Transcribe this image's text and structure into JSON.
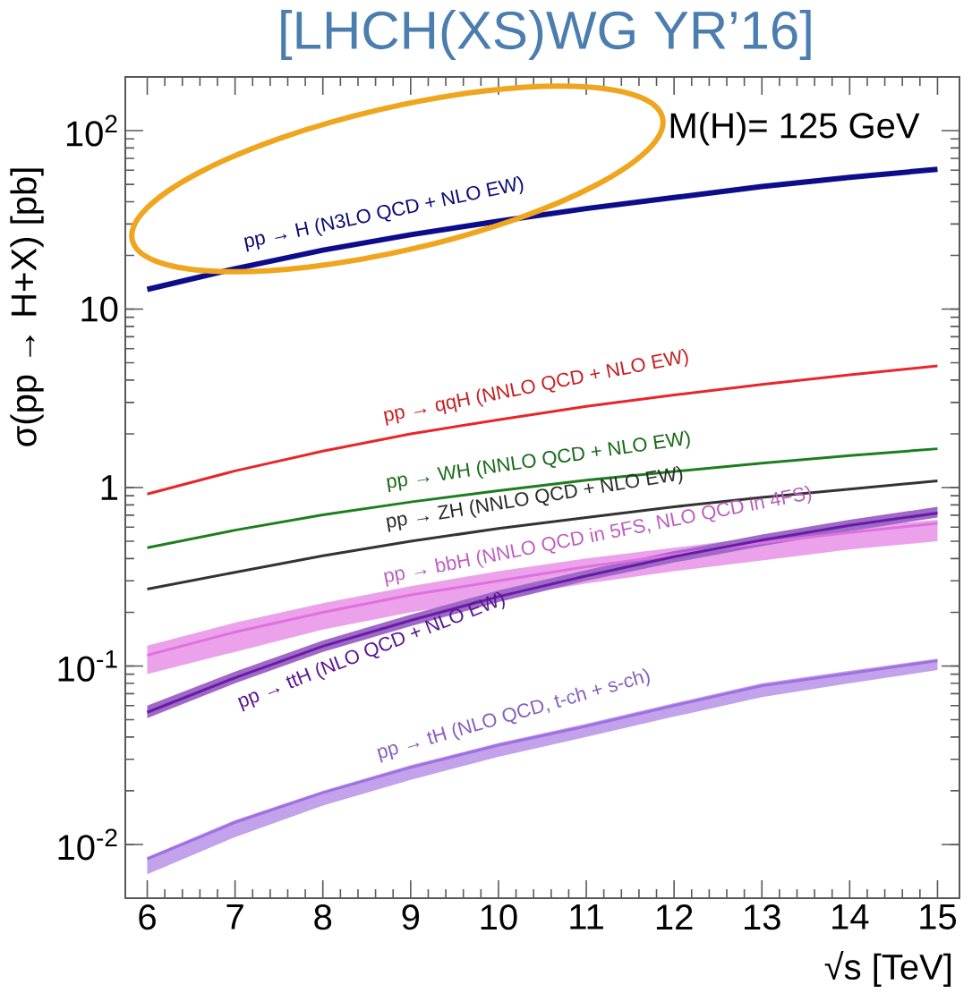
{
  "chart_data": {
    "type": "line",
    "title": "[LHCH(XS)WG YR’16]",
    "xlabel": "√s [TeV]",
    "ylabel": "σ(pp → H+X) [pb]",
    "annotations": [
      "M(H)= 125 GeV"
    ],
    "x": [
      6,
      7,
      8,
      9,
      10,
      11,
      12,
      13,
      14,
      15
    ],
    "log": "y",
    "xlim": [
      5.75,
      15.25
    ],
    "ylim": [
      0.005,
      200
    ],
    "xticks": [
      6,
      7,
      8,
      9,
      10,
      11,
      12,
      13,
      14,
      15
    ],
    "yticks": [
      {
        "value": 0.01,
        "label": "10$^{-2}$"
      },
      {
        "value": 0.1,
        "label": "10$^{-1}$"
      },
      1,
      10,
      {
        "value": 100,
        "label": "10$^{2}$"
      }
    ],
    "series": [
      {
        "name": "pp → H (N3LO QCD + NLO EW)",
        "color": "#0d0d8c",
        "values": [
          12.9,
          16.85,
          21.4,
          26.1,
          31.1,
          36.6,
          42.2,
          48.6,
          54.7,
          60.8
        ]
      },
      {
        "name": "pp → qqH (NNLO QCD + NLO EW)",
        "color": "#e8262a",
        "values": [
          0.92,
          1.24,
          1.6,
          2.0,
          2.4,
          2.85,
          3.3,
          3.78,
          4.28,
          4.8
        ]
      },
      {
        "name": "pp → WH (NNLO QCD + NLO EW)",
        "color": "#1e7d1e",
        "values": [
          0.46,
          0.577,
          0.703,
          0.83,
          0.96,
          1.1,
          1.23,
          1.37,
          1.51,
          1.65
        ]
      },
      {
        "name": "pp → ZH (NNLO QCD + NLO EW)",
        "color": "#333333",
        "values": [
          0.27,
          0.335,
          0.415,
          0.5,
          0.59,
          0.68,
          0.78,
          0.88,
          0.98,
          1.09
        ]
      },
      {
        "name": "pp → bbH (NNLO QCD in 5FS, NLO QCD in 4FS)",
        "color": "#e070e0",
        "values": [
          0.115,
          0.155,
          0.2,
          0.25,
          0.3,
          0.36,
          0.42,
          0.49,
          0.56,
          0.63
        ],
        "lower": [
          0.09,
          0.12,
          0.16,
          0.2,
          0.24,
          0.29,
          0.34,
          0.39,
          0.45,
          0.5
        ],
        "upper": [
          0.13,
          0.175,
          0.225,
          0.28,
          0.34,
          0.4,
          0.46,
          0.53,
          0.6,
          0.66
        ]
      },
      {
        "name": "pp → ttH (NLO QCD + NLO EW)",
        "color": "#6a1aa8",
        "values": [
          0.055,
          0.086,
          0.129,
          0.18,
          0.245,
          0.32,
          0.41,
          0.507,
          0.614,
          0.72
        ],
        "lower": [
          0.051,
          0.08,
          0.12,
          0.167,
          0.228,
          0.3,
          0.38,
          0.47,
          0.57,
          0.68
        ],
        "upper": [
          0.06,
          0.093,
          0.139,
          0.194,
          0.265,
          0.345,
          0.44,
          0.545,
          0.66,
          0.78
        ]
      },
      {
        "name": "pp → tH (NLO QCD, t-ch + s-ch)",
        "color": "#a070e0",
        "values": [
          0.0083,
          0.0133,
          0.0195,
          0.027,
          0.036,
          0.046,
          0.06,
          0.0775,
          0.091,
          0.107
        ],
        "lower": [
          0.0068,
          0.011,
          0.0165,
          0.023,
          0.031,
          0.04,
          0.052,
          0.067,
          0.08,
          0.095
        ],
        "upper": [
          0.0085,
          0.0137,
          0.02,
          0.0278,
          0.037,
          0.0475,
          0.062,
          0.08,
          0.094,
          0.11
        ]
      }
    ]
  }
}
